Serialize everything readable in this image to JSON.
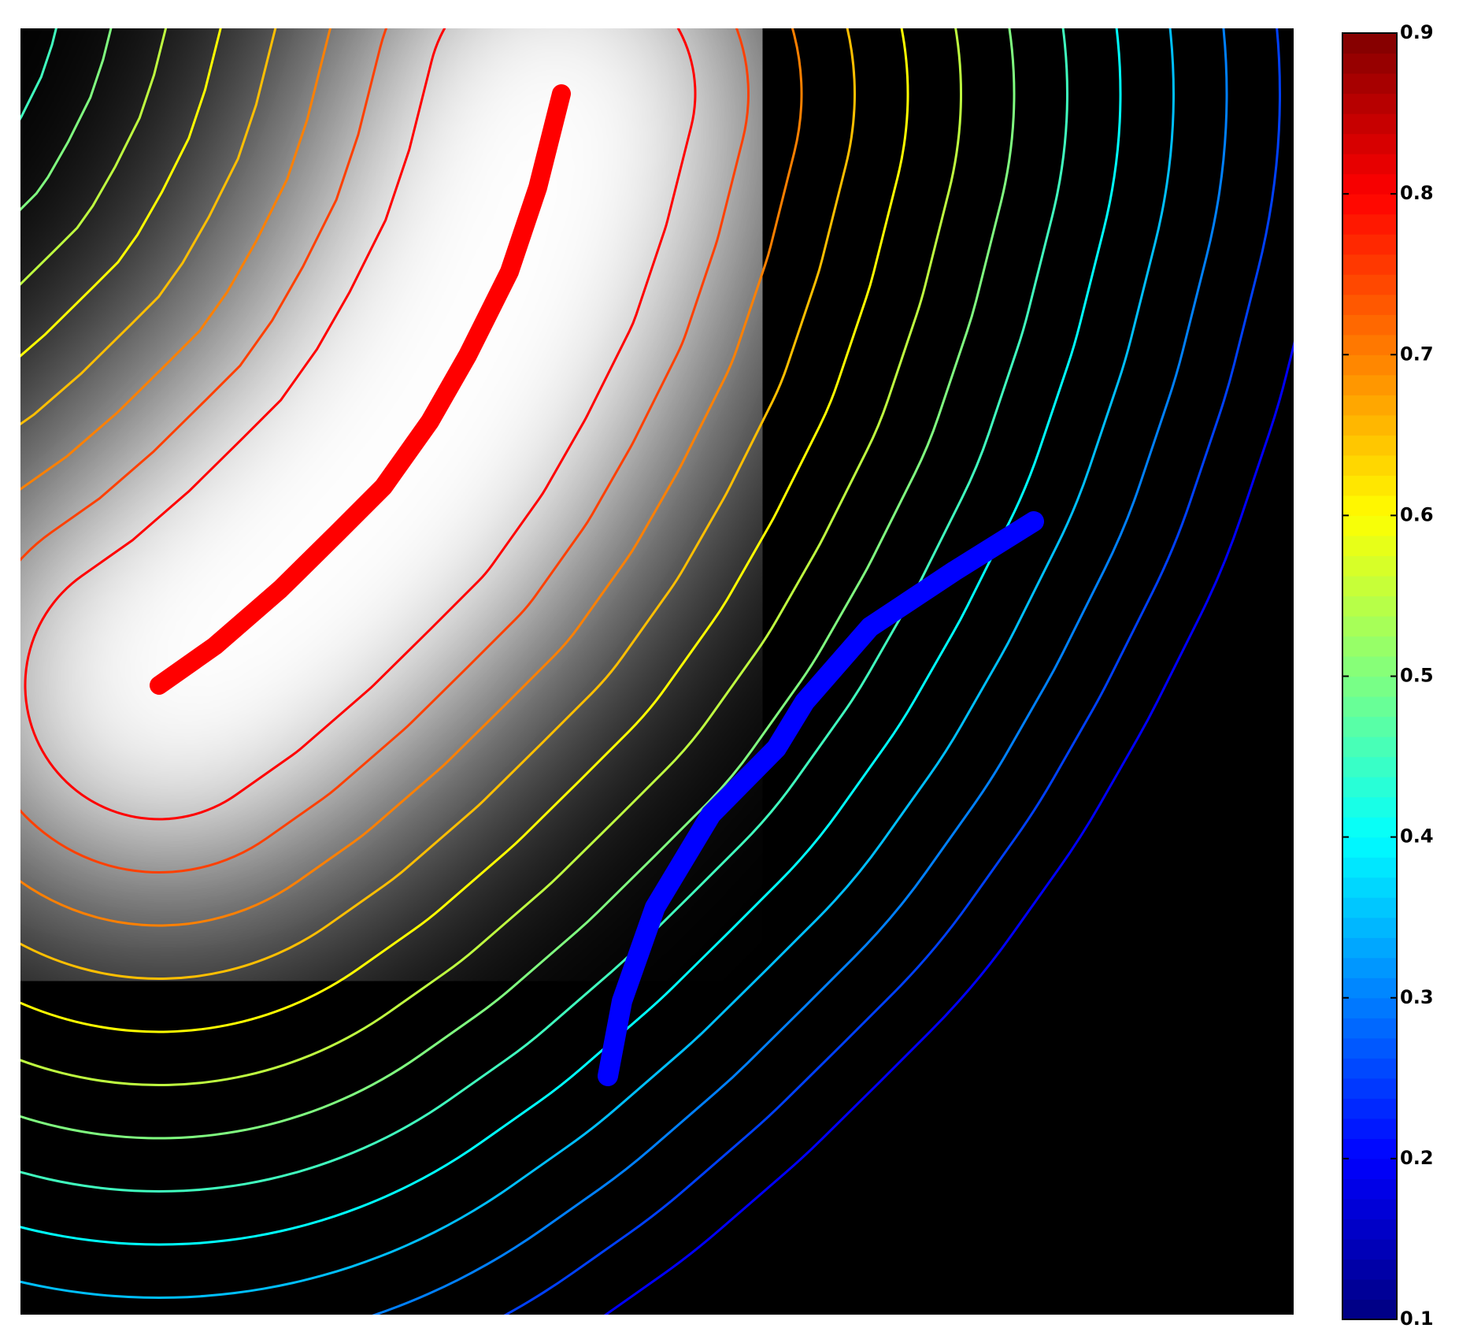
{
  "chart_data": {
    "type": "contour",
    "colormap": "jet",
    "levels": [
      0.2,
      0.25,
      0.3,
      0.35,
      0.4,
      0.45,
      0.5,
      0.55,
      0.6,
      0.65,
      0.7,
      0.75,
      0.8
    ],
    "clim": [
      0.1,
      0.9
    ],
    "cticks": [
      0.1,
      0.2,
      0.3,
      0.4,
      0.5,
      0.6,
      0.7,
      0.8,
      0.9
    ]
  }
}
